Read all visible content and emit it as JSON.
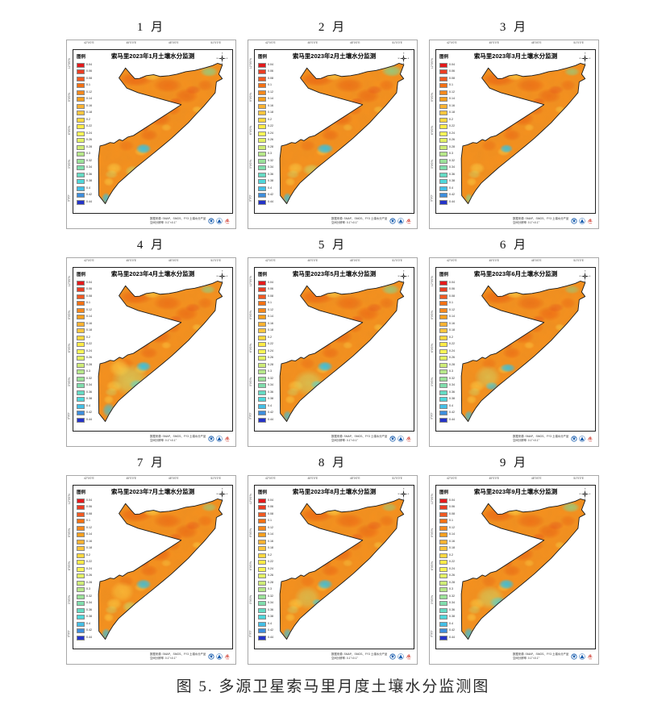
{
  "page": {
    "caption": "图 5. 多源卫星索马里月度土壤水分监测图"
  },
  "panel": {
    "legend_title": "图例",
    "source_note_line1": "数据来源: SMAP、SMOS、FY3 土壤水分产品",
    "source_note_line2": "空间分辨率: 0.1°×0.1°",
    "compass": {
      "n": "N",
      "e": "E",
      "s": "S",
      "w": "W"
    },
    "top_ticks": [
      "42°0'0\"E",
      "45°0'0\"E",
      "48°0'0\"E",
      "51°0'0\"E"
    ],
    "left_ticks": [
      "12°0'0\"N",
      "9°0'0\"N",
      "6°0'0\"N",
      "3°0'0\"N",
      "0°0'0\""
    ],
    "right_ticks": [
      "12°0'0\"N",
      "9°0'0\"N",
      "6°0'0\"N",
      "3°0'0\"N",
      "0°0'0\""
    ]
  },
  "legend": {
    "values": [
      "0.04",
      "0.06",
      "0.08",
      "0.1",
      "0.12",
      "0.14",
      "0.16",
      "0.18",
      "0.2",
      "0.22",
      "0.24",
      "0.26",
      "0.28",
      "0.3",
      "0.32",
      "0.34",
      "0.36",
      "0.38",
      "0.4",
      "0.42",
      "0.44"
    ],
    "colors": [
      "#E31A1C",
      "#EB3E23",
      "#F15A22",
      "#F47114",
      "#F6891D",
      "#F89F1E",
      "#FBB231",
      "#FDC53E",
      "#FFD83E",
      "#FFEB46",
      "#F8F556",
      "#E3F163",
      "#CEEC76",
      "#B6E789",
      "#9BE299",
      "#80DEAD",
      "#65DAC3",
      "#4FD7DA",
      "#44BFE6",
      "#3E8EDC",
      "#2433C8"
    ]
  },
  "map_colors": {
    "base": "#F6911F",
    "outline": "#1A1A1A",
    "dark": "#EC6012",
    "red": "#E5451A",
    "yellow": "#FFD94A",
    "lgreen": "#C4EC7E",
    "green": "#7FDE9B",
    "cyan": "#30C5EC"
  },
  "months": [
    {
      "label": "1 月",
      "title": "索马里2023年1月土壤水分监测",
      "spots": [
        [
          38,
          59,
          6,
          3.5,
          "cyan",
          0.95
        ],
        [
          10,
          92,
          3.5,
          4,
          "cyan",
          0.8
        ],
        [
          87,
          8,
          7,
          3.5,
          "green",
          0.7
        ],
        [
          30,
          74,
          6,
          4,
          "lgreen",
          0.6
        ]
      ]
    },
    {
      "label": "2 月",
      "title": "索马里2023年2月土壤水分监测",
      "spots": [
        [
          38,
          59,
          6.5,
          3.5,
          "cyan",
          0.95
        ],
        [
          10,
          92,
          3.5,
          4,
          "cyan",
          0.8
        ],
        [
          88,
          7.5,
          8,
          4,
          "green",
          0.75
        ],
        [
          28,
          73,
          7,
          4,
          "lgreen",
          0.55
        ]
      ]
    },
    {
      "label": "3 月",
      "title": "索马里2023年3月土壤水分监测",
      "spots": [
        [
          38,
          59,
          5,
          3,
          "cyan",
          0.9
        ],
        [
          10,
          92,
          3,
          3.5,
          "green",
          0.7
        ],
        [
          87,
          8,
          6,
          3,
          "green",
          0.6
        ]
      ]
    },
    {
      "label": "4 月",
      "title": "索马里2023年4月土壤水分监测",
      "spots": [
        [
          38,
          59,
          6,
          3.5,
          "cyan",
          0.95
        ],
        [
          33,
          71,
          6,
          3.5,
          "cyan",
          0.9
        ],
        [
          28,
          68,
          14,
          11,
          "lgreen",
          0.55
        ],
        [
          12,
          88,
          5,
          5,
          "cyan",
          0.7
        ],
        [
          86,
          8,
          6,
          3,
          "green",
          0.6
        ],
        [
          20,
          60,
          8,
          6,
          "yellow",
          0.6
        ]
      ]
    },
    {
      "label": "5 月",
      "title": "索马里2023年5月土壤水分监测",
      "spots": [
        [
          38,
          59,
          6,
          3.5,
          "cyan",
          0.95
        ],
        [
          32,
          71,
          5,
          3,
          "cyan",
          0.85
        ],
        [
          26,
          70,
          12,
          9,
          "lgreen",
          0.5
        ],
        [
          10,
          92,
          3.5,
          4,
          "cyan",
          0.75
        ],
        [
          87,
          8,
          7,
          3.5,
          "green",
          0.65
        ]
      ]
    },
    {
      "label": "6 月",
      "title": "索马里2023年6月土壤水分监测",
      "spots": [
        [
          39,
          60,
          6,
          3,
          "cyan",
          0.9
        ],
        [
          27,
          72,
          5,
          3,
          "cyan",
          0.8
        ],
        [
          10,
          92,
          3.5,
          4,
          "cyan",
          0.75
        ],
        [
          24,
          66,
          10,
          8,
          "lgreen",
          0.45
        ],
        [
          87,
          8,
          6,
          3,
          "green",
          0.5
        ]
      ]
    },
    {
      "label": "7 月",
      "title": "索马里2023年7月土壤水分监测",
      "spots": [
        [
          38,
          59,
          6,
          3.5,
          "cyan",
          0.9
        ],
        [
          28,
          74,
          6,
          4,
          "lgreen",
          0.6
        ],
        [
          10,
          92,
          3.5,
          4,
          "cyan",
          0.75
        ],
        [
          87,
          8,
          6,
          3,
          "green",
          0.55
        ],
        [
          22,
          64,
          9,
          7,
          "yellow",
          0.5
        ]
      ]
    },
    {
      "label": "8 月",
      "title": "索马里2023年8月土壤水分监测",
      "spots": [
        [
          38,
          59,
          6,
          3.5,
          "cyan",
          0.9
        ],
        [
          32,
          71,
          4,
          2.5,
          "cyan",
          0.8
        ],
        [
          10,
          92,
          3.5,
          4,
          "cyan",
          0.7
        ],
        [
          86,
          8,
          6,
          3,
          "green",
          0.5
        ],
        [
          25,
          68,
          10,
          8,
          "lgreen",
          0.45
        ]
      ]
    },
    {
      "label": "9 月",
      "title": "索马里2023年9月土壤水分监测",
      "spots": [
        [
          38,
          59,
          6,
          3.5,
          "cyan",
          0.95
        ],
        [
          32,
          71,
          7,
          4,
          "cyan",
          0.9
        ],
        [
          10,
          92,
          4,
          4.5,
          "cyan",
          0.8
        ],
        [
          86,
          8,
          7,
          3.5,
          "green",
          0.7
        ],
        [
          26,
          68,
          11,
          8,
          "lgreen",
          0.5
        ]
      ]
    }
  ]
}
